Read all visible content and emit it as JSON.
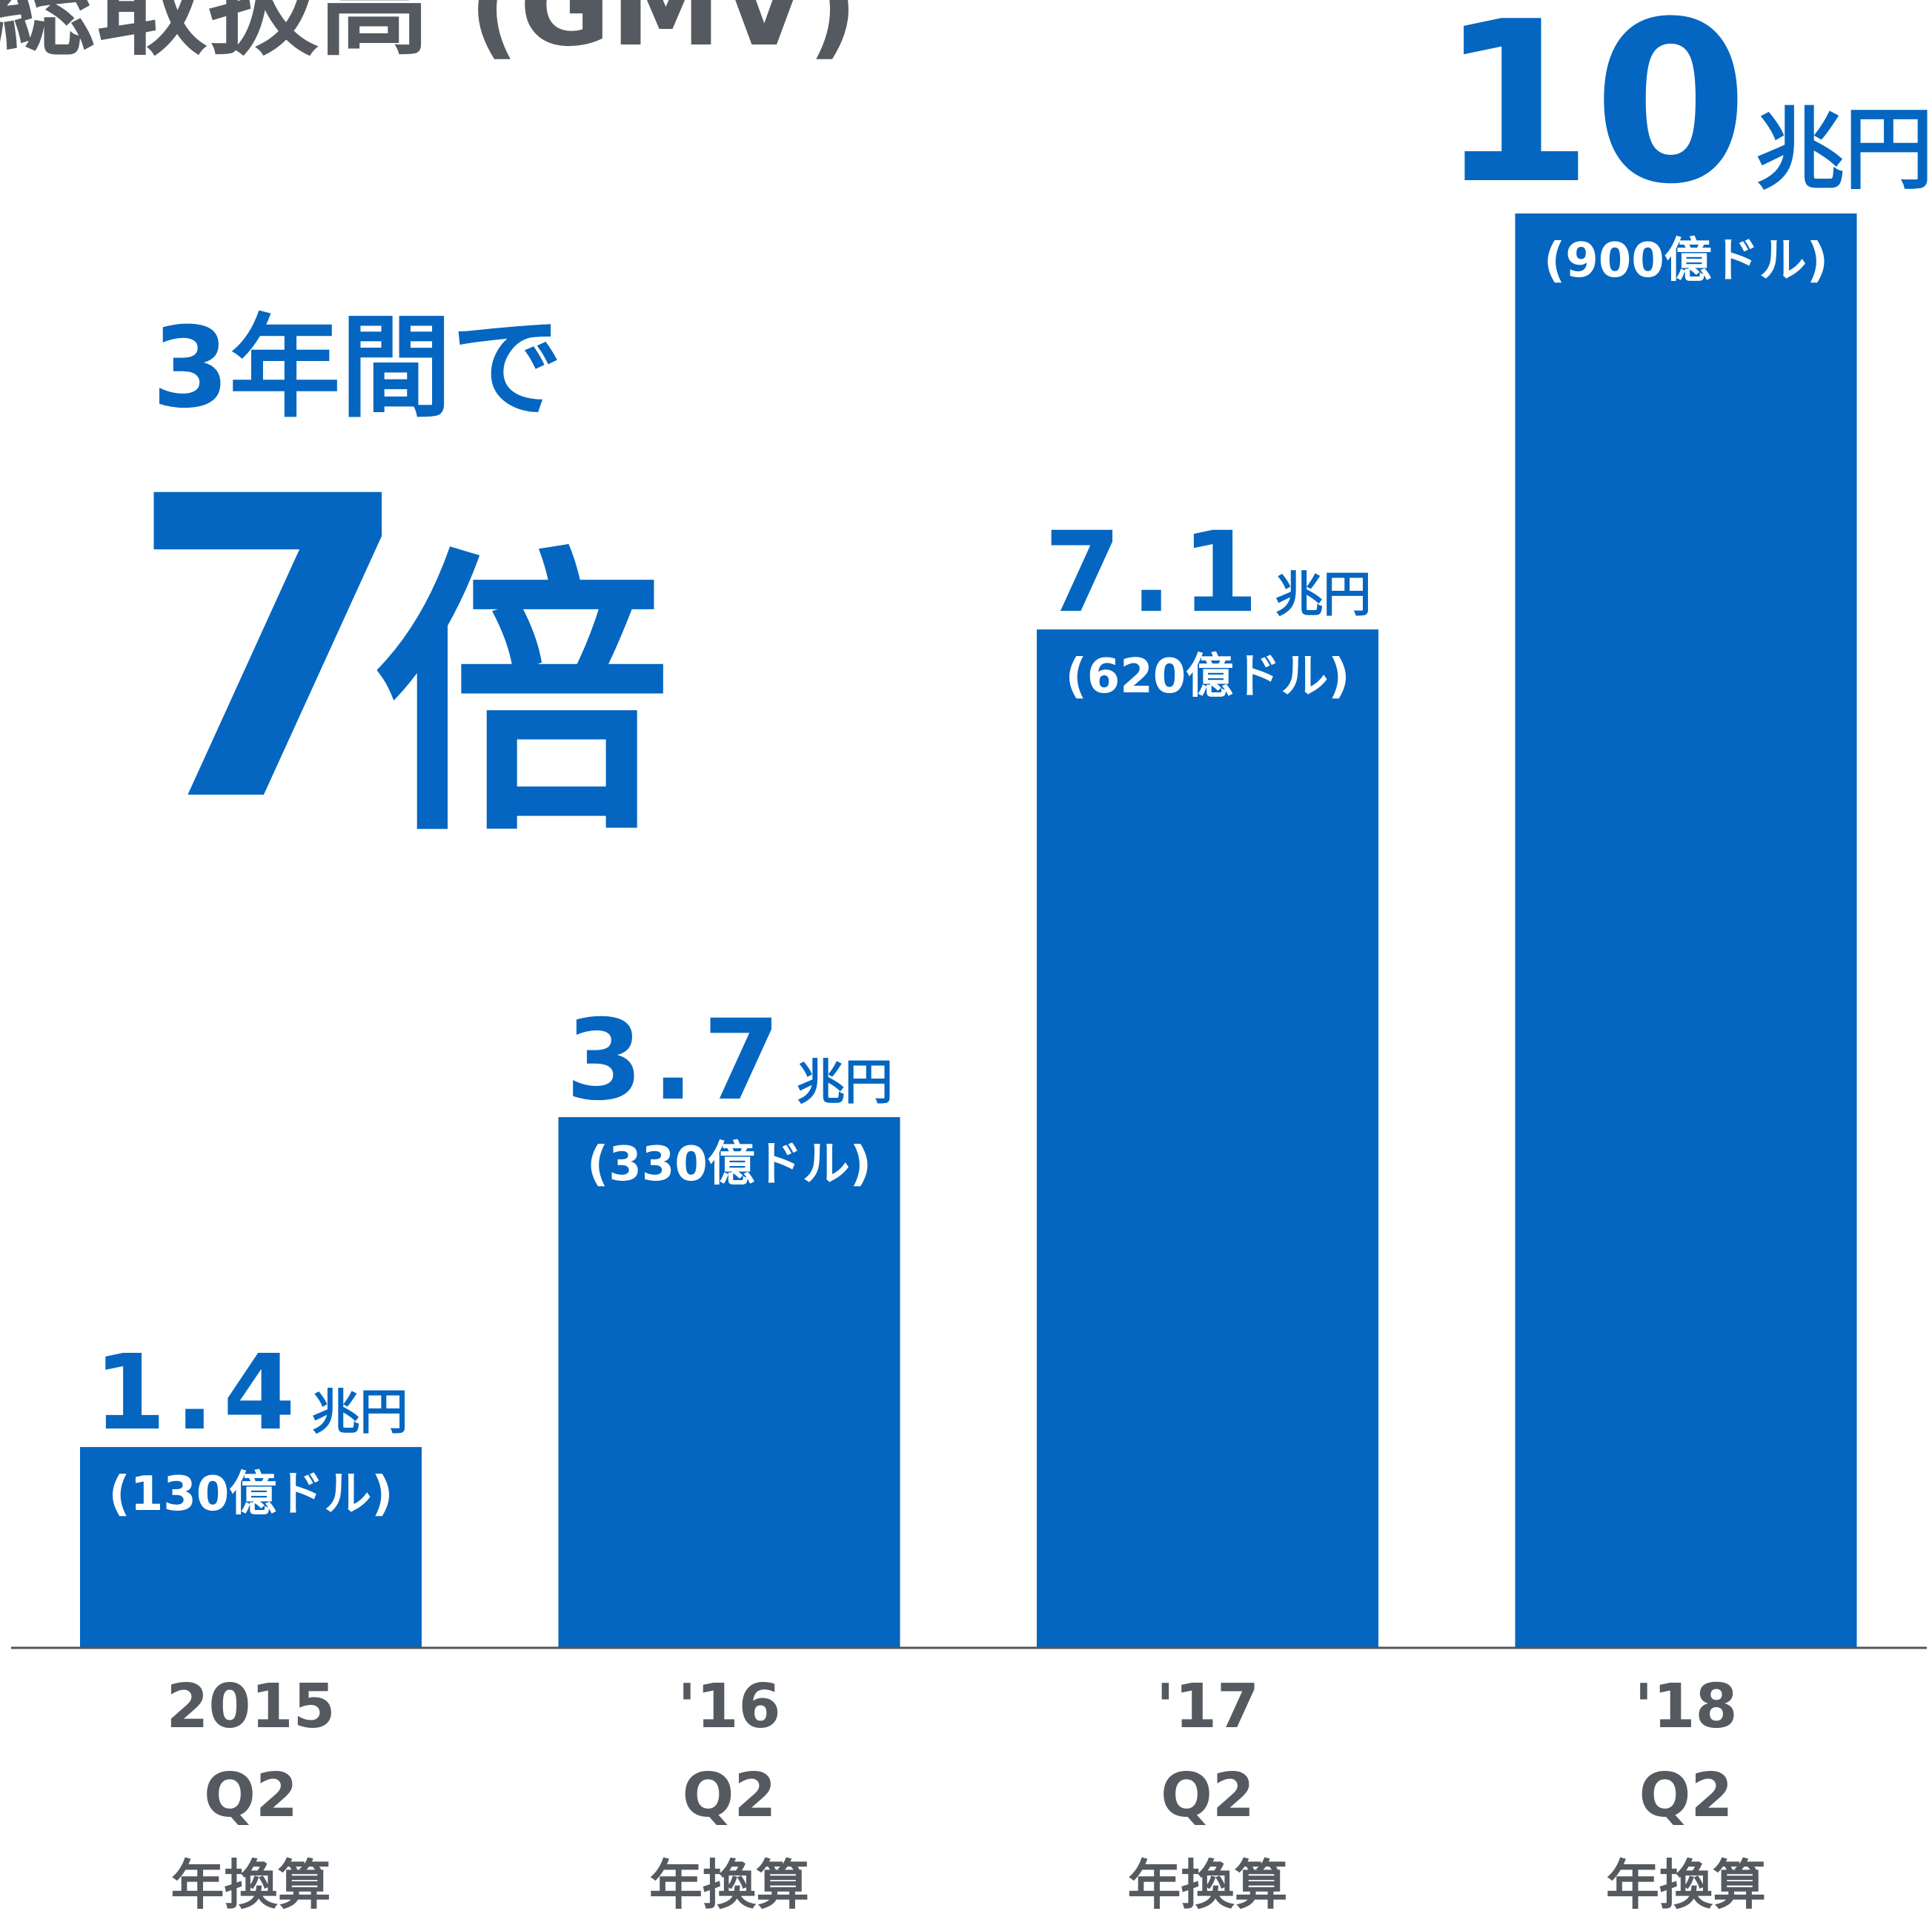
{
  "chart_data": {
    "type": "bar",
    "title": "総取扱高 (GMV)",
    "annotation": {
      "lead": "3年間で",
      "number": "7",
      "unit": "倍"
    },
    "categories": [
      [
        "2015",
        "Q2",
        "年換算"
      ],
      [
        "'16",
        "Q2",
        "年換算"
      ],
      [
        "'17",
        "Q2",
        "年換算"
      ],
      [
        "'18",
        "Q2",
        "年換算"
      ]
    ],
    "values": [
      1.4,
      3.7,
      7.1,
      10
    ],
    "value_unit": "兆円",
    "usd_labels": [
      "(130億ドル)",
      "(330億ドル)",
      "(620億ドル)",
      "(900億ドル)"
    ],
    "color": "#0466c0"
  }
}
